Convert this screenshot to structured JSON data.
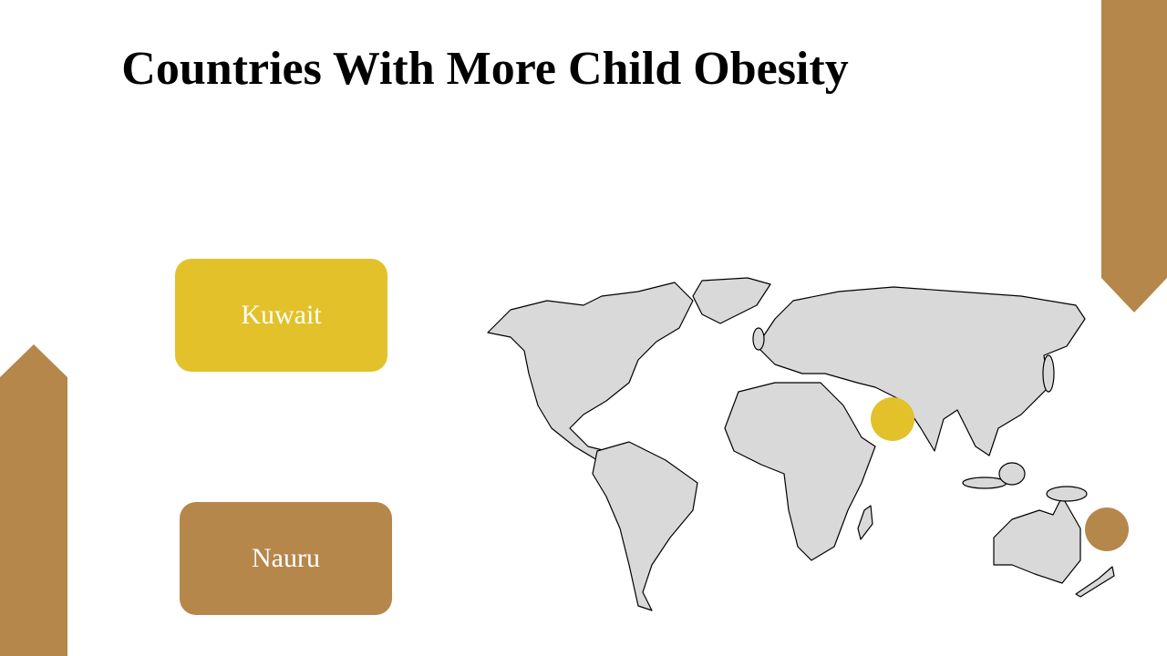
{
  "header": {
    "title": "Countries With More Child Obesity"
  },
  "items": [
    {
      "label": "Kuwait"
    },
    {
      "label": "Nauru"
    }
  ]
}
